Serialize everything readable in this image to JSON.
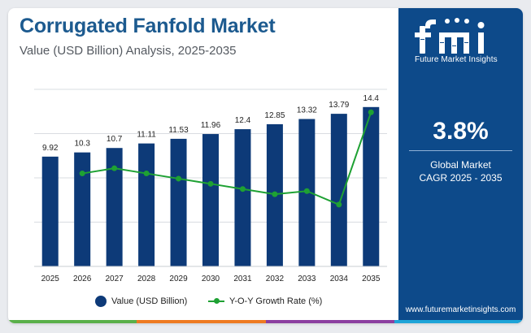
{
  "header": {
    "title": "Corrugated Fanfold Market",
    "subtitle": "Value (USD Billion) Analysis, 2025-2035"
  },
  "brand": {
    "logo_text": "fmi",
    "name": "Future Market Insights",
    "website": "www.futuremarketinsights.com"
  },
  "stat": {
    "value": "3.8%",
    "label_line1": "Global Market",
    "label_line2": "CAGR 2025 - 2035"
  },
  "legend": {
    "bar_label": "Value (USD Billion)",
    "line_label": "Y-O-Y Growth Rate (%)"
  },
  "colors": {
    "bar": "#0d3a78",
    "line": "#1ea133",
    "panel": "#0d4a8a",
    "title": "#1c5a8f",
    "strip": [
      "#5ab04a",
      "#ee7a22",
      "#8b3fa0",
      "#1ea4d8"
    ]
  },
  "chart_data": {
    "type": "bar",
    "categories": [
      "2025",
      "2026",
      "2027",
      "2028",
      "2029",
      "2030",
      "2031",
      "2032",
      "2033",
      "2034",
      "2035"
    ],
    "series": [
      {
        "name": "Value (USD Billion)",
        "type": "bar",
        "values": [
          9.92,
          10.3,
          10.7,
          11.11,
          11.53,
          11.96,
          12.4,
          12.85,
          13.32,
          13.79,
          14.4
        ],
        "labels": [
          "9.92",
          "10.3",
          "10.7",
          "11.11",
          "11.53",
          "11.96",
          "12.4",
          "12.85",
          "13.32",
          "13.79",
          "14.4"
        ]
      },
      {
        "name": "Y-O-Y Growth Rate (%)",
        "type": "line",
        "values": [
          null,
          3.83,
          3.88,
          3.83,
          3.78,
          3.73,
          3.68,
          3.63,
          3.66,
          3.53,
          4.42
        ]
      }
    ],
    "ylim": [
      0,
      16
    ],
    "grid": true,
    "legend_position": "bottom"
  }
}
